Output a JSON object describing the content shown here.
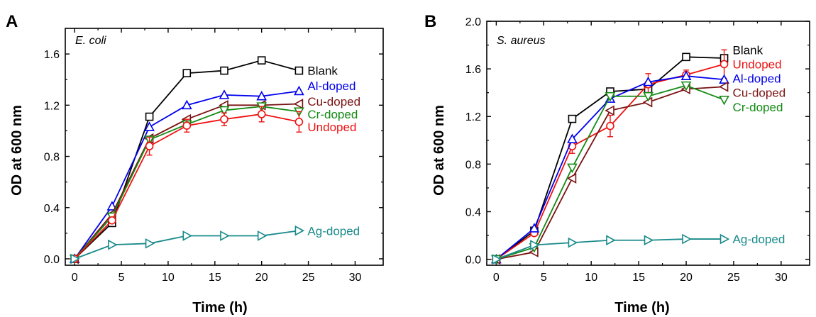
{
  "colors": {
    "Blank": "#000000",
    "Al-doped": "#0000ee",
    "Cu-doped": "#7a1212",
    "Cr-doped": "#138a13",
    "Undoped": "#ee1111",
    "Ag-doped": "#1a8a8a"
  },
  "chart_data": [
    {
      "panel_label": "A",
      "type": "line",
      "organism": "E. coli",
      "xlabel": "Time (h)",
      "ylabel": "OD at 600 nm",
      "xlim": [
        -1,
        33
      ],
      "ylim": [
        -0.05,
        1.8
      ],
      "xticks": [
        0,
        5,
        10,
        15,
        20,
        25,
        30
      ],
      "yticks": [
        0.0,
        0.4,
        0.8,
        1.2,
        1.6
      ],
      "ytick_labels": [
        "0.0",
        "0.4",
        "0.8",
        "1.2",
        "1.6"
      ],
      "x": [
        0,
        4,
        8,
        12,
        16,
        20,
        24
      ],
      "grid": false,
      "series": [
        {
          "name": "Blank",
          "marker": "square",
          "values": [
            0.0,
            0.28,
            1.11,
            1.45,
            1.47,
            1.55,
            1.47
          ]
        },
        {
          "name": "Al-doped",
          "marker": "triangle-up",
          "values": [
            0.0,
            0.41,
            1.03,
            1.2,
            1.28,
            1.27,
            1.31
          ]
        },
        {
          "name": "Cu-doped",
          "marker": "triangle-left",
          "values": [
            0.0,
            0.35,
            0.94,
            1.09,
            1.2,
            1.2,
            1.21
          ]
        },
        {
          "name": "Cr-doped",
          "marker": "triangle-down",
          "values": [
            0.0,
            0.33,
            0.93,
            1.05,
            1.16,
            1.19,
            1.15
          ]
        },
        {
          "name": "Undoped",
          "marker": "circle",
          "values": [
            0.0,
            0.3,
            0.88,
            1.04,
            1.09,
            1.13,
            1.07
          ],
          "errors": [
            0,
            0,
            0.07,
            0.05,
            0.05,
            0.06,
            0.08
          ]
        },
        {
          "name": "Ag-doped",
          "marker": "triangle-right",
          "values": [
            0.0,
            0.11,
            0.12,
            0.18,
            0.18,
            0.18,
            0.22
          ]
        }
      ],
      "labels": [
        {
          "text": "Blank",
          "series": "Blank",
          "y": 1.47
        },
        {
          "text": "Al-doped",
          "series": "Al-doped",
          "y": 1.35
        },
        {
          "text": "Cu-doped",
          "series": "Cu-doped",
          "y": 1.23
        },
        {
          "text": "Cr-doped",
          "series": "Cr-doped",
          "y": 1.13
        },
        {
          "text": "Undoped",
          "series": "Undoped",
          "y": 1.03
        },
        {
          "text": "Ag-doped",
          "series": "Ag-doped",
          "y": 0.22
        }
      ]
    },
    {
      "panel_label": "B",
      "type": "line",
      "organism": "S. aureus",
      "xlabel": "Time (h)",
      "ylabel": "OD at 600 nm",
      "xlim": [
        -1,
        33
      ],
      "ylim": [
        -0.05,
        2.0
      ],
      "xticks": [
        0,
        5,
        10,
        15,
        20,
        25,
        30
      ],
      "yticks": [
        0.0,
        0.4,
        0.8,
        1.2,
        1.6,
        2.0
      ],
      "ytick_labels": [
        "0.0",
        "0.4",
        "0.8",
        "1.2",
        "1.6",
        "2.0"
      ],
      "x": [
        0,
        4,
        8,
        12,
        16,
        20,
        24
      ],
      "grid": false,
      "series": [
        {
          "name": "Blank",
          "marker": "square",
          "values": [
            0.0,
            0.24,
            1.18,
            1.41,
            1.43,
            1.7,
            1.69
          ]
        },
        {
          "name": "Undoped",
          "marker": "circle",
          "values": [
            0.0,
            0.22,
            0.95,
            1.12,
            1.47,
            1.55,
            1.64
          ],
          "errors": [
            0,
            0.02,
            0.06,
            0.09,
            0.09,
            0.04,
            0.12
          ]
        },
        {
          "name": "Al-doped",
          "marker": "triangle-up",
          "values": [
            0.0,
            0.26,
            1.01,
            1.35,
            1.49,
            1.54,
            1.51
          ]
        },
        {
          "name": "Cu-doped",
          "marker": "triangle-left",
          "values": [
            0.0,
            0.06,
            0.68,
            1.25,
            1.32,
            1.43,
            1.45
          ]
        },
        {
          "name": "Cr-doped",
          "marker": "triangle-down",
          "values": [
            0.0,
            0.1,
            0.77,
            1.37,
            1.37,
            1.46,
            1.34
          ]
        },
        {
          "name": "Ag-doped",
          "marker": "triangle-right",
          "values": [
            0.0,
            0.12,
            0.14,
            0.16,
            0.16,
            0.17,
            0.17
          ]
        }
      ],
      "labels": [
        {
          "text": "Blank",
          "series": "Blank",
          "y": 1.76
        },
        {
          "text": "Undoped",
          "series": "Undoped",
          "y": 1.64
        },
        {
          "text": "Al-doped",
          "series": "Al-doped",
          "y": 1.52
        },
        {
          "text": "Cu-doped",
          "series": "Cu-doped",
          "y": 1.4
        },
        {
          "text": "Cr-doped",
          "series": "Cr-doped",
          "y": 1.28
        },
        {
          "text": "Ag-doped",
          "series": "Ag-doped",
          "y": 0.17
        }
      ]
    }
  ]
}
